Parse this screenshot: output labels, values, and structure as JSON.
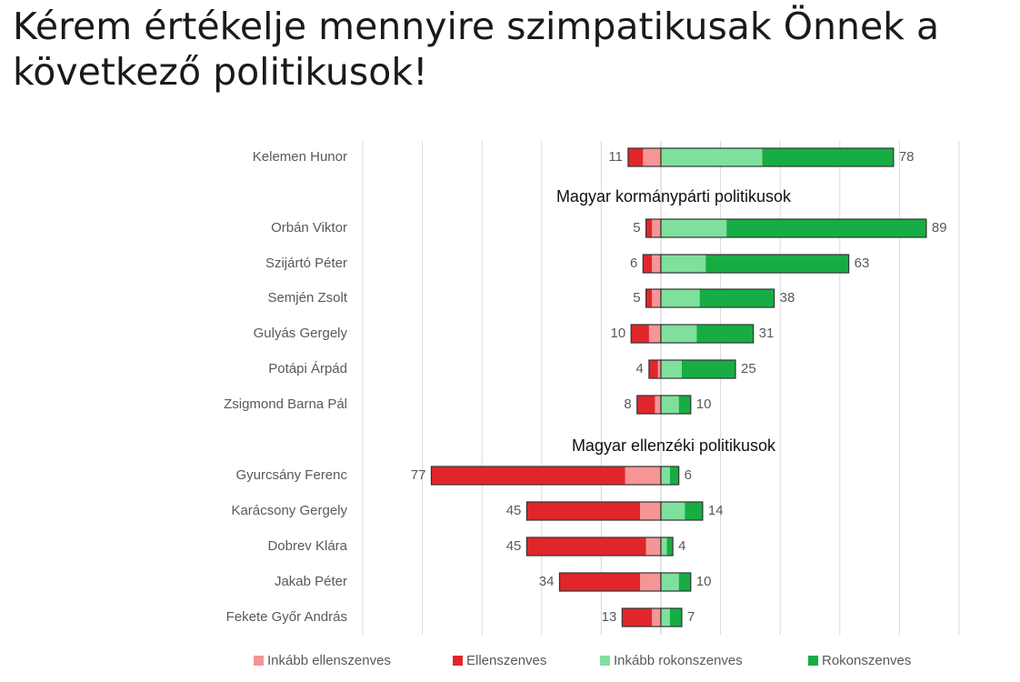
{
  "title": {
    "line1": "Kérem értékelje mennyire szimpatikusak Önnek a",
    "line2": "következő politikusok!"
  },
  "colors": {
    "inkabb_ellenszenves": "#f59595",
    "ellenszenves": "#e0262a",
    "inkabb_rokonszenves": "#7fe09d",
    "rokonszenves": "#17ad44",
    "grid": "#d9d9d9",
    "bar_border": "#333333"
  },
  "chart_data": {
    "type": "bar",
    "orientation": "horizontal",
    "stacked": true,
    "diverging": true,
    "grid": true,
    "legend_position": "bottom",
    "xlim": [
      -100,
      100
    ],
    "legend": [
      "Inkább ellenszenves",
      "Ellenszenves",
      "Inkább rokonszenves",
      "Rokonszenves"
    ],
    "groups": [
      "Magyar kormánypárti politikusok",
      "Magyar ellenzéki politikusok"
    ],
    "rows": [
      {
        "name": "Kelemen Hunor",
        "group": null,
        "negative_total": 11,
        "positive_total": 78,
        "inkabb_ellenszenves": 6,
        "ellenszenves": 5,
        "inkabb_rokonszenves": 34,
        "rokonszenves": 44
      },
      {
        "name": "Orbán Viktor",
        "group": "Magyar kormánypárti politikusok",
        "negative_total": 5,
        "positive_total": 89,
        "inkabb_ellenszenves": 3,
        "ellenszenves": 2,
        "inkabb_rokonszenves": 22,
        "rokonszenves": 67
      },
      {
        "name": "Szijártó Péter",
        "group": "Magyar kormánypárti politikusok",
        "negative_total": 6,
        "positive_total": 63,
        "inkabb_ellenszenves": 3,
        "ellenszenves": 3,
        "inkabb_rokonszenves": 15,
        "rokonszenves": 48
      },
      {
        "name": "Semjén Zsolt",
        "group": "Magyar kormánypárti politikusok",
        "negative_total": 5,
        "positive_total": 38,
        "inkabb_ellenszenves": 3,
        "ellenszenves": 2,
        "inkabb_rokonszenves": 13,
        "rokonszenves": 25
      },
      {
        "name": "Gulyás Gergely",
        "group": "Magyar kormánypárti politikusok",
        "negative_total": 10,
        "positive_total": 31,
        "inkabb_ellenszenves": 4,
        "ellenszenves": 6,
        "inkabb_rokonszenves": 12,
        "rokonszenves": 19
      },
      {
        "name": "Potápi Árpád",
        "group": "Magyar kormánypárti politikusok",
        "negative_total": 4,
        "positive_total": 25,
        "inkabb_ellenszenves": 1,
        "ellenszenves": 3,
        "inkabb_rokonszenves": 7,
        "rokonszenves": 18
      },
      {
        "name": "Zsigmond Barna Pál",
        "group": "Magyar kormánypárti politikusok",
        "negative_total": 8,
        "positive_total": 10,
        "inkabb_ellenszenves": 2,
        "ellenszenves": 6,
        "inkabb_rokonszenves": 6,
        "rokonszenves": 4
      },
      {
        "name": "Gyurcsány Ferenc",
        "group": "Magyar ellenzéki politikusok",
        "negative_total": 77,
        "positive_total": 6,
        "inkabb_ellenszenves": 12,
        "ellenszenves": 65,
        "inkabb_rokonszenves": 3,
        "rokonszenves": 3
      },
      {
        "name": "Karácsony Gergely",
        "group": "Magyar ellenzéki politikusok",
        "negative_total": 45,
        "positive_total": 14,
        "inkabb_ellenszenves": 7,
        "ellenszenves": 38,
        "inkabb_rokonszenves": 8,
        "rokonszenves": 6
      },
      {
        "name": "Dobrev Klára",
        "group": "Magyar ellenzéki politikusok",
        "negative_total": 45,
        "positive_total": 4,
        "inkabb_ellenszenves": 5,
        "ellenszenves": 40,
        "inkabb_rokonszenves": 2,
        "rokonszenves": 2
      },
      {
        "name": "Jakab Péter",
        "group": "Magyar ellenzéki politikusok",
        "negative_total": 34,
        "positive_total": 10,
        "inkabb_ellenszenves": 7,
        "ellenszenves": 27,
        "inkabb_rokonszenves": 6,
        "rokonszenves": 4
      },
      {
        "name": "Fekete Győr András",
        "group": "Magyar ellenzéki politikusok",
        "negative_total": 13,
        "positive_total": 7,
        "inkabb_ellenszenves": 3,
        "ellenszenves": 10,
        "inkabb_rokonszenves": 3,
        "rokonszenves": 4
      }
    ]
  }
}
